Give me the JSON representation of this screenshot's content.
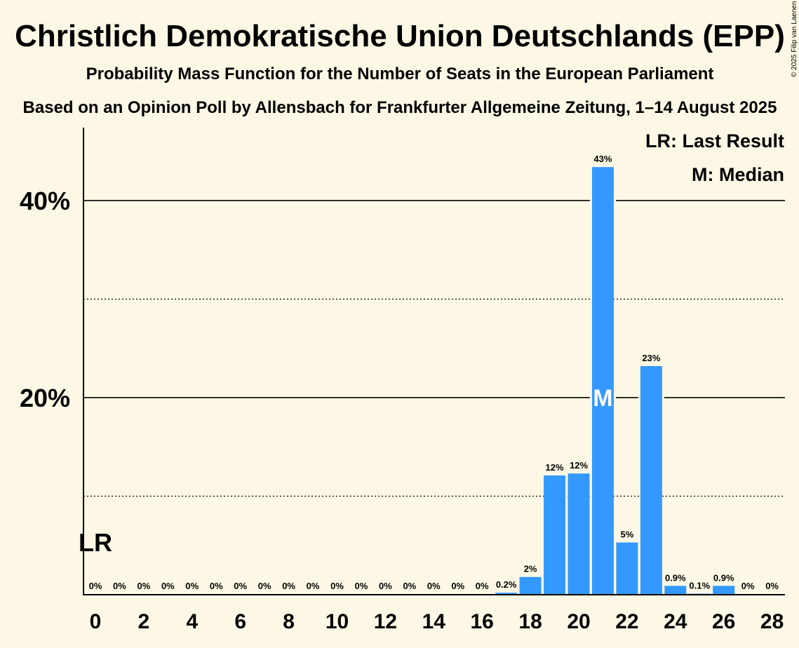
{
  "chart_data": {
    "type": "bar",
    "title": "Christlich Demokratische Union Deutschlands (EPP)",
    "subtitle": "Probability Mass Function for the Number of Seats in the European Parliament",
    "source_line": "Based on an Opinion Poll by Allensbach for Frankfurter Allgemeine Zeitung, 1–14 August 2025",
    "copyright": "© 2025 Filip van Laenen",
    "categories": [
      0,
      1,
      2,
      3,
      4,
      5,
      6,
      7,
      8,
      9,
      10,
      11,
      12,
      13,
      14,
      15,
      16,
      17,
      18,
      19,
      20,
      21,
      22,
      23,
      24,
      25,
      26,
      27,
      28
    ],
    "values": [
      0,
      0,
      0,
      0,
      0,
      0,
      0,
      0,
      0,
      0,
      0,
      0,
      0,
      0,
      0,
      0,
      0,
      0.2,
      1.8,
      12.1,
      12.3,
      43.4,
      5.3,
      23.2,
      0.9,
      0.1,
      0.9,
      0,
      0
    ],
    "value_labels": [
      "0%",
      "0%",
      "0%",
      "0%",
      "0%",
      "0%",
      "0%",
      "0%",
      "0%",
      "0%",
      "0%",
      "0%",
      "0%",
      "0%",
      "0%",
      "0%",
      "0%",
      "0.2%",
      "2%",
      "12%",
      "12%",
      "43%",
      "5%",
      "23%",
      "0.9%",
      "0.1%",
      "0.9%",
      "0%",
      "0%"
    ],
    "x_tick_labels": [
      "0",
      "2",
      "4",
      "6",
      "8",
      "10",
      "12",
      "14",
      "16",
      "18",
      "20",
      "22",
      "24",
      "26",
      "28"
    ],
    "y_tick_labels": [
      "20%",
      "40%"
    ],
    "ylim": [
      0,
      47.4
    ],
    "solid_gridlines": [
      20,
      40
    ],
    "dotted_gridlines": [
      10,
      30
    ],
    "last_result_seat": 0,
    "last_result_marker": "LR",
    "median_seat": 21,
    "median_marker": "M",
    "legend": [
      "LR: Last Result",
      "M: Median"
    ],
    "legend_position": "top-right",
    "bar_color": "#3399ff",
    "background_color": "#fdf8e5"
  }
}
